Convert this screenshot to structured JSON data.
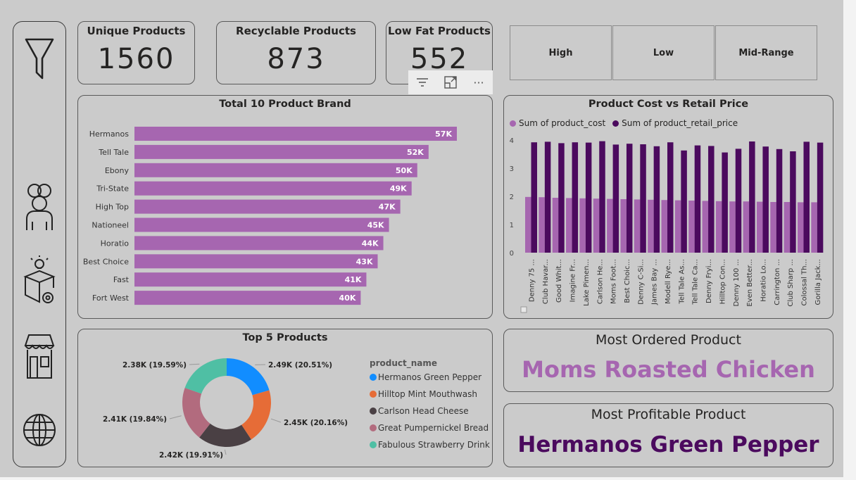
{
  "kpis": [
    {
      "title": "Unique Products",
      "value": "1560"
    },
    {
      "title": "Recyclable Products",
      "value": "873"
    },
    {
      "title": "Low Fat Products",
      "value": "552"
    }
  ],
  "slicer": [
    "High",
    "Low",
    "Mid-Range"
  ],
  "brand_chart": {
    "title": "Total 10 Product Brand",
    "chart_data": {
      "type": "bar",
      "orientation": "horizontal",
      "title": "Total 10 Product Brand",
      "categories": [
        "Hermanos",
        "Tell Tale",
        "Ebony",
        "Tri-State",
        "High Top",
        "Nationeel",
        "Horatio",
        "Best Choice",
        "Fast",
        "Fort West"
      ],
      "values": [
        57,
        52,
        50,
        49,
        47,
        45,
        44,
        43,
        41,
        40
      ],
      "labels": [
        "57K",
        "52K",
        "50K",
        "49K",
        "47K",
        "45K",
        "44K",
        "43K",
        "41K",
        "40K"
      ],
      "color": "#a666b0"
    }
  },
  "cost_chart": {
    "title": "Product Cost vs Retail Price",
    "legend": [
      "Sum of product_cost",
      "Sum of product_retail_price"
    ],
    "colors": [
      "#a666b0",
      "#4b0a5e"
    ],
    "chart_data": {
      "type": "bar",
      "title": "Product Cost vs Retail Price",
      "ylim": [
        0,
        4
      ],
      "yticks": [
        "0",
        "1",
        "2",
        "3",
        "4"
      ],
      "categories": [
        "Denny 75 ...",
        "Club Havar...",
        "Good Whit...",
        "Imagine Fr...",
        "Lake Pimen...",
        "Carlson He...",
        "Moms Foot...",
        "Best Choic...",
        "Denny C-Si...",
        "James Bay ...",
        "Modell Rye...",
        "Tell Tale As...",
        "Tell Tale Ca...",
        "Denny Fryi...",
        "Hilltop Con...",
        "Denny 100 ...",
        "Even Better...",
        "Horatio Lo...",
        "Carrington ...",
        "Club Sharp ...",
        "Colossal Th...",
        "Gorilla Jack..."
      ],
      "series": [
        {
          "name": "Sum of product_cost",
          "values": [
            1.98,
            1.97,
            1.95,
            1.94,
            1.93,
            1.92,
            1.91,
            1.9,
            1.89,
            1.88,
            1.87,
            1.86,
            1.85,
            1.84,
            1.83,
            1.82,
            1.82,
            1.81,
            1.8,
            1.8,
            1.79,
            1.79
          ]
        },
        {
          "name": "Sum of product_retail_price",
          "values": [
            3.92,
            3.94,
            3.89,
            3.92,
            3.91,
            3.96,
            3.84,
            3.87,
            3.85,
            3.78,
            3.92,
            3.63,
            3.81,
            3.79,
            3.56,
            3.69,
            3.95,
            3.77,
            3.68,
            3.6,
            3.94,
            3.91
          ]
        }
      ]
    }
  },
  "donut": {
    "title": "Top 5 Products",
    "legend_title": "product_name",
    "chart_data": {
      "type": "pie",
      "variant": "donut",
      "title": "Top 5 Products",
      "labels": [
        "Hermanos Green Pepper",
        "Hilltop Mint Mouthwash",
        "Carlson Head Cheese",
        "Great Pumpernickel Bread",
        "Fabulous Strawberry Drink"
      ],
      "values": [
        20.51,
        20.16,
        19.91,
        19.84,
        19.59
      ],
      "data_labels": [
        "2.49K (20.51%)",
        "2.45K (20.16%)",
        "2.42K (19.91%)",
        "2.41K (19.84%)",
        "2.38K (19.59%)"
      ],
      "colors": [
        "#118dff",
        "#e66c37",
        "#4a4044",
        "#b26b7e",
        "#4fbfa4"
      ]
    }
  },
  "most_ordered": {
    "title": "Most Ordered Product",
    "value": "Moms Roasted Chicken",
    "color": "#a666b0"
  },
  "most_profitable": {
    "title": "Most Profitable Product",
    "value": "Hermanos Green Pepper",
    "color": "#4b0a5e"
  },
  "visual_header": {
    "icons": [
      "filter-icon",
      "focus-mode-icon",
      "more-options-icon"
    ],
    "more": "···"
  }
}
